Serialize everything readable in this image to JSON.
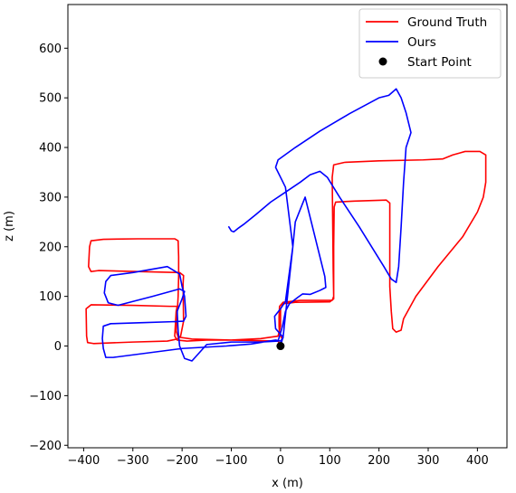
{
  "chart_data": {
    "type": "line",
    "title": "",
    "xlabel": "x (m)",
    "ylabel": "z (m)",
    "xlim": [
      -432,
      460
    ],
    "ylim": [
      -205,
      688
    ],
    "xticks": [
      -400,
      -300,
      -200,
      -100,
      0,
      100,
      200,
      300,
      400
    ],
    "yticks": [
      -200,
      -100,
      0,
      100,
      200,
      300,
      400,
      500,
      600
    ],
    "xtick_labels": [
      "−400",
      "−300",
      "−200",
      "−100",
      "0",
      "100",
      "200",
      "300",
      "400"
    ],
    "ytick_labels": [
      "−200",
      "−100",
      "0",
      "100",
      "200",
      "300",
      "400",
      "500",
      "600"
    ],
    "grid": false,
    "legend_position": "top-right",
    "series": [
      {
        "name": "Ground Truth",
        "color": "#ff0000",
        "points": [
          [
            0,
            0
          ],
          [
            -5,
            10
          ],
          [
            -100,
            12
          ],
          [
            -150,
            12
          ],
          [
            -190,
            10
          ],
          [
            -210,
            12
          ],
          [
            -215,
            20
          ],
          [
            -212,
            70
          ],
          [
            -210,
            80
          ],
          [
            -225,
            80
          ],
          [
            -300,
            82
          ],
          [
            -385,
            83
          ],
          [
            -395,
            75
          ],
          [
            -394,
            20
          ],
          [
            -392,
            7
          ],
          [
            -380,
            5
          ],
          [
            -300,
            8
          ],
          [
            -230,
            10
          ],
          [
            -210,
            14
          ],
          [
            -203,
            20
          ],
          [
            -197,
            50
          ],
          [
            -198,
            125
          ],
          [
            -197,
            142
          ],
          [
            -205,
            148
          ],
          [
            -290,
            150
          ],
          [
            -370,
            152
          ],
          [
            -385,
            150
          ],
          [
            -390,
            160
          ],
          [
            -388,
            200
          ],
          [
            -385,
            212
          ],
          [
            -360,
            215
          ],
          [
            -290,
            216
          ],
          [
            -215,
            216
          ],
          [
            -208,
            212
          ],
          [
            -207,
            180
          ],
          [
            -207,
            140
          ],
          [
            -208,
            100
          ],
          [
            -212,
            30
          ],
          [
            -208,
            18
          ],
          [
            -180,
            14
          ],
          [
            -100,
            12
          ],
          [
            -40,
            15
          ],
          [
            -5,
            20
          ],
          [
            0,
            40
          ],
          [
            0,
            75
          ],
          [
            5,
            85
          ],
          [
            30,
            88
          ],
          [
            100,
            89
          ],
          [
            108,
            95
          ],
          [
            108,
            200
          ],
          [
            109,
            280
          ],
          [
            112,
            290
          ],
          [
            150,
            292
          ],
          [
            215,
            294
          ],
          [
            222,
            288
          ],
          [
            222,
            200
          ],
          [
            222,
            120
          ],
          [
            225,
            70
          ],
          [
            228,
            35
          ],
          [
            235,
            28
          ],
          [
            245,
            32
          ],
          [
            250,
            55
          ],
          [
            275,
            100
          ],
          [
            320,
            160
          ],
          [
            370,
            220
          ],
          [
            400,
            270
          ],
          [
            412,
            300
          ],
          [
            417,
            330
          ],
          [
            417,
            385
          ],
          [
            405,
            392
          ],
          [
            375,
            392
          ],
          [
            350,
            385
          ],
          [
            330,
            377
          ],
          [
            290,
            375
          ],
          [
            200,
            373
          ],
          [
            130,
            370
          ],
          [
            108,
            365
          ],
          [
            105,
            340
          ],
          [
            106,
            250
          ],
          [
            107,
            155
          ],
          [
            108,
            100
          ],
          [
            105,
            92
          ],
          [
            40,
            92
          ],
          [
            5,
            88
          ],
          [
            -2,
            80
          ],
          [
            -3,
            60
          ],
          [
            -3,
            40
          ],
          [
            -2,
            25
          ],
          [
            3,
            15
          ],
          [
            0,
            0
          ]
        ]
      },
      {
        "name": "Ours",
        "color": "#0000ff",
        "points": [
          [
            0,
            0
          ],
          [
            5,
            18
          ],
          [
            -10,
            35
          ],
          [
            -12,
            60
          ],
          [
            0,
            75
          ],
          [
            10,
            90
          ],
          [
            25,
            200
          ],
          [
            30,
            250
          ],
          [
            50,
            300
          ],
          [
            75,
            200
          ],
          [
            90,
            140
          ],
          [
            92,
            118
          ],
          [
            80,
            112
          ],
          [
            60,
            104
          ],
          [
            45,
            105
          ],
          [
            35,
            98
          ],
          [
            18,
            85
          ],
          [
            10,
            70
          ],
          [
            4,
            40
          ],
          [
            -5,
            10
          ],
          [
            -40,
            8
          ],
          [
            -100,
            8
          ],
          [
            -150,
            3
          ],
          [
            -180,
            -30
          ],
          [
            -195,
            -25
          ],
          [
            -205,
            0
          ],
          [
            -208,
            30
          ],
          [
            -210,
            70
          ],
          [
            -200,
            95
          ],
          [
            -195,
            110
          ],
          [
            -205,
            115
          ],
          [
            -260,
            100
          ],
          [
            -330,
            82
          ],
          [
            -350,
            87
          ],
          [
            -358,
            107
          ],
          [
            -355,
            130
          ],
          [
            -345,
            142
          ],
          [
            -300,
            148
          ],
          [
            -230,
            160
          ],
          [
            -205,
            145
          ],
          [
            -200,
            120
          ],
          [
            -195,
            100
          ],
          [
            -192,
            60
          ],
          [
            -197,
            50
          ],
          [
            -220,
            49
          ],
          [
            -280,
            47
          ],
          [
            -345,
            45
          ],
          [
            -360,
            40
          ],
          [
            -362,
            15
          ],
          [
            -360,
            -5
          ],
          [
            -355,
            -23
          ],
          [
            -340,
            -23
          ],
          [
            -200,
            -5
          ],
          [
            -110,
            0
          ],
          [
            -60,
            4
          ],
          [
            -10,
            12
          ],
          [
            0,
            10
          ],
          [
            5,
            16
          ],
          [
            25,
            200
          ],
          [
            10,
            320
          ],
          [
            -10,
            360
          ],
          [
            -5,
            375
          ],
          [
            30,
            400
          ],
          [
            80,
            433
          ],
          [
            140,
            468
          ],
          [
            200,
            500
          ],
          [
            220,
            505
          ],
          [
            235,
            518
          ],
          [
            245,
            500
          ],
          [
            255,
            470
          ],
          [
            265,
            430
          ],
          [
            255,
            400
          ],
          [
            250,
            330
          ],
          [
            245,
            240
          ],
          [
            240,
            160
          ],
          [
            235,
            128
          ],
          [
            225,
            135
          ],
          [
            210,
            160
          ],
          [
            160,
            240
          ],
          [
            120,
            300
          ],
          [
            95,
            340
          ],
          [
            80,
            352
          ],
          [
            60,
            345
          ],
          [
            40,
            330
          ],
          [
            10,
            310
          ],
          [
            -20,
            290
          ],
          [
            -50,
            265
          ],
          [
            -75,
            245
          ],
          [
            -85,
            238
          ],
          [
            -95,
            230
          ],
          [
            -100,
            232
          ],
          [
            -105,
            240
          ]
        ]
      },
      {
        "name": "Start Point",
        "color": "#000000",
        "type": "scatter",
        "points": [
          [
            0,
            0
          ]
        ]
      }
    ]
  }
}
